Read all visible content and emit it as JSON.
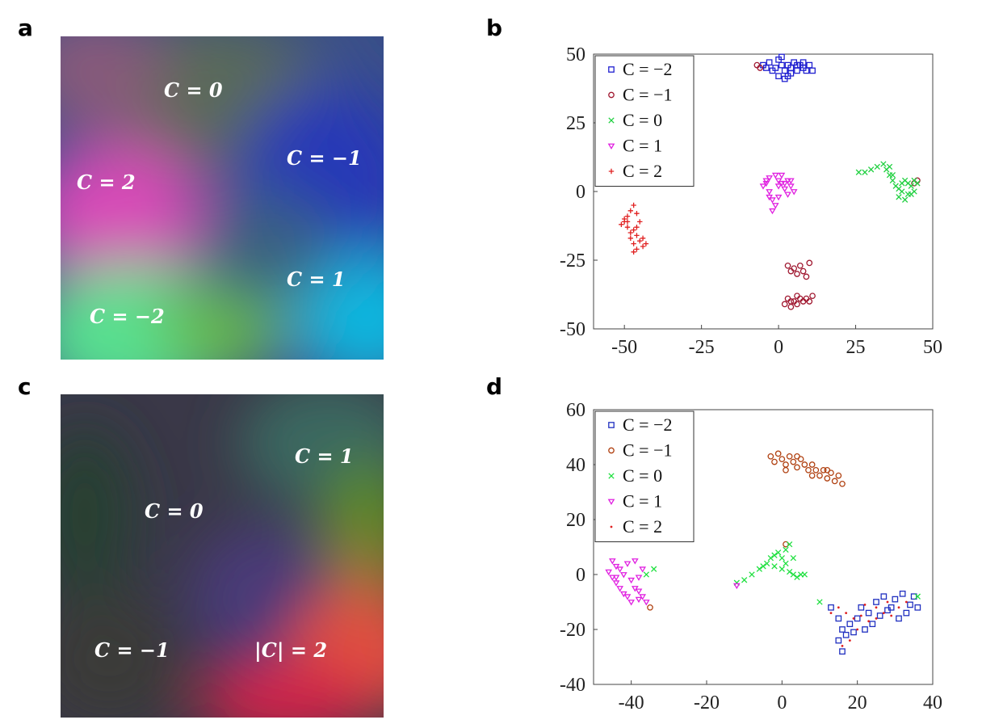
{
  "panels": {
    "a": {
      "letter": "a",
      "labels": [
        "C = 0",
        "C = −1",
        "C = 2",
        "C = 1",
        "C = −2"
      ]
    },
    "b": {
      "letter": "b"
    },
    "c": {
      "letter": "c",
      "labels": [
        "C = 1",
        "C = 0",
        "C = −1",
        "|C| = 2"
      ]
    },
    "d": {
      "letter": "d"
    }
  },
  "chart_data": [
    {
      "panel": "b",
      "type": "scatter",
      "xlim": [
        -60,
        50
      ],
      "ylim": [
        -50,
        50
      ],
      "xticks": [
        -50,
        -25,
        0,
        25,
        50
      ],
      "yticks": [
        -50,
        -25,
        0,
        25,
        50
      ],
      "grid": false,
      "legend_position": "top-left",
      "series": [
        {
          "name": "C = −2",
          "marker": "square",
          "color": "#2020d0",
          "points": [
            [
              -5,
              46
            ],
            [
              -3,
              47
            ],
            [
              -1,
              45
            ],
            [
              0,
              48
            ],
            [
              1,
              46
            ],
            [
              2,
              44
            ],
            [
              3,
              42
            ],
            [
              4,
              45
            ],
            [
              5,
              47
            ],
            [
              6,
              44
            ],
            [
              7,
              46
            ],
            [
              8,
              45
            ],
            [
              9,
              44
            ],
            [
              10,
              46
            ],
            [
              11,
              44
            ],
            [
              0,
              42
            ],
            [
              2,
              41
            ],
            [
              -2,
              44
            ],
            [
              4,
              43
            ],
            [
              6,
              46
            ],
            [
              8,
              47
            ],
            [
              1,
              49
            ],
            [
              3,
              46
            ],
            [
              -4,
              45
            ]
          ]
        },
        {
          "name": "C = −1",
          "marker": "circle",
          "color": "#a01830",
          "points": [
            [
              3,
              -27
            ],
            [
              4,
              -29
            ],
            [
              5,
              -28
            ],
            [
              6,
              -30
            ],
            [
              7,
              -27
            ],
            [
              8,
              -29
            ],
            [
              9,
              -31
            ],
            [
              10,
              -26
            ],
            [
              2,
              -41
            ],
            [
              3,
              -39
            ],
            [
              4,
              -42
            ],
            [
              5,
              -40
            ],
            [
              6,
              -41
            ],
            [
              7,
              -39
            ],
            [
              8,
              -40
            ],
            [
              9,
              -39
            ],
            [
              10,
              -40
            ],
            [
              11,
              -38
            ],
            [
              4,
              -40
            ],
            [
              6,
              -38
            ],
            [
              -7,
              46
            ],
            [
              -6,
              45
            ],
            [
              45,
              4
            ],
            [
              44,
              3
            ]
          ]
        },
        {
          "name": "C = 0",
          "marker": "x",
          "color": "#20d040",
          "points": [
            [
              26,
              7
            ],
            [
              28,
              7
            ],
            [
              30,
              8
            ],
            [
              32,
              9
            ],
            [
              34,
              10
            ],
            [
              35,
              8
            ],
            [
              36,
              6
            ],
            [
              37,
              4
            ],
            [
              38,
              2
            ],
            [
              39,
              1
            ],
            [
              40,
              3
            ],
            [
              41,
              4
            ],
            [
              42,
              3
            ],
            [
              43,
              2
            ],
            [
              44,
              4
            ],
            [
              40,
              0
            ],
            [
              39,
              -2
            ],
            [
              42,
              -1
            ],
            [
              44,
              0
            ],
            [
              37,
              6
            ],
            [
              36,
              9
            ],
            [
              41,
              -3
            ],
            [
              43,
              -1
            ],
            [
              45,
              3
            ]
          ]
        },
        {
          "name": "C = 1",
          "marker": "triangle",
          "color": "#e020e0",
          "points": [
            [
              -4,
              3
            ],
            [
              -3,
              0
            ],
            [
              -2,
              -3
            ],
            [
              -1,
              -5
            ],
            [
              -2,
              -7
            ],
            [
              0,
              2
            ],
            [
              -3,
              5
            ],
            [
              -1,
              6
            ],
            [
              1,
              6
            ],
            [
              1,
              3
            ],
            [
              2,
              1
            ],
            [
              3,
              4
            ],
            [
              4,
              2
            ],
            [
              5,
              0
            ],
            [
              3,
              -1
            ],
            [
              2,
              3
            ],
            [
              -5,
              2
            ],
            [
              -3,
              -2
            ],
            [
              0,
              -2
            ],
            [
              -4,
              4
            ],
            [
              0,
              4
            ],
            [
              4,
              4
            ]
          ]
        },
        {
          "name": "C = 2",
          "marker": "plus",
          "color": "#e02020",
          "points": [
            [
              -47,
              -5
            ],
            [
              -48,
              -7
            ],
            [
              -49,
              -9
            ],
            [
              -50,
              -11
            ],
            [
              -51,
              -12
            ],
            [
              -49,
              -13
            ],
            [
              -47,
              -14
            ],
            [
              -46,
              -16
            ],
            [
              -45,
              -18
            ],
            [
              -44,
              -20
            ],
            [
              -43,
              -19
            ],
            [
              -46,
              -21
            ],
            [
              -47,
              -19
            ],
            [
              -48,
              -15
            ],
            [
              -49,
              -11
            ],
            [
              -46,
              -8
            ],
            [
              -45,
              -11
            ],
            [
              -44,
              -17
            ],
            [
              -47,
              -22
            ],
            [
              -48,
              -17
            ],
            [
              -50,
              -10
            ],
            [
              -46,
              -13
            ]
          ]
        }
      ]
    },
    {
      "panel": "d",
      "type": "scatter",
      "xlim": [
        -50,
        40
      ],
      "ylim": [
        -40,
        60
      ],
      "xticks": [
        -40,
        -20,
        0,
        20,
        40
      ],
      "yticks": [
        -40,
        -20,
        0,
        20,
        40,
        60
      ],
      "grid": false,
      "legend_position": "top-left",
      "series": [
        {
          "name": "C = −2",
          "marker": "square",
          "color": "#2030c0",
          "points": [
            [
              13,
              -12
            ],
            [
              15,
              -16
            ],
            [
              16,
              -20
            ],
            [
              15,
              -24
            ],
            [
              16,
              -28
            ],
            [
              17,
              -22
            ],
            [
              18,
              -18
            ],
            [
              20,
              -16
            ],
            [
              22,
              -20
            ],
            [
              24,
              -18
            ],
            [
              26,
              -15
            ],
            [
              25,
              -10
            ],
            [
              27,
              -8
            ],
            [
              29,
              -12
            ],
            [
              31,
              -16
            ],
            [
              33,
              -14
            ],
            [
              34,
              -11
            ],
            [
              35,
              -8
            ],
            [
              32,
              -7
            ],
            [
              30,
              -9
            ],
            [
              28,
              -13
            ],
            [
              23,
              -14
            ],
            [
              19,
              -21
            ],
            [
              21,
              -12
            ],
            [
              36,
              -12
            ]
          ]
        },
        {
          "name": "C = −1",
          "marker": "circle",
          "color": "#b04010",
          "points": [
            [
              -3,
              43
            ],
            [
              -1,
              44
            ],
            [
              0,
              42
            ],
            [
              1,
              40
            ],
            [
              2,
              43
            ],
            [
              3,
              41
            ],
            [
              4,
              39
            ],
            [
              5,
              42
            ],
            [
              6,
              40
            ],
            [
              7,
              38
            ],
            [
              8,
              36
            ],
            [
              9,
              38
            ],
            [
              10,
              36
            ],
            [
              11,
              38
            ],
            [
              12,
              35
            ],
            [
              13,
              37
            ],
            [
              14,
              34
            ],
            [
              15,
              36
            ],
            [
              16,
              33
            ],
            [
              -2,
              41
            ],
            [
              1,
              38
            ],
            [
              4,
              43
            ],
            [
              8,
              40
            ],
            [
              12,
              38
            ],
            [
              -35,
              -12
            ],
            [
              1,
              11
            ]
          ]
        },
        {
          "name": "C = 0",
          "marker": "x",
          "color": "#20e040",
          "points": [
            [
              -12,
              -3
            ],
            [
              -10,
              -2
            ],
            [
              -8,
              0
            ],
            [
              -6,
              2
            ],
            [
              -4,
              4
            ],
            [
              -3,
              6
            ],
            [
              -2,
              7
            ],
            [
              -1,
              8
            ],
            [
              0,
              6
            ],
            [
              1,
              4
            ],
            [
              0,
              2
            ],
            [
              2,
              1
            ],
            [
              3,
              0
            ],
            [
              4,
              -1
            ],
            [
              5,
              0
            ],
            [
              6,
              0
            ],
            [
              1,
              9
            ],
            [
              2,
              11
            ],
            [
              -2,
              3
            ],
            [
              -5,
              3
            ],
            [
              3,
              6
            ],
            [
              -34,
              2
            ],
            [
              -36,
              0
            ],
            [
              10,
              -10
            ],
            [
              36,
              -8
            ]
          ]
        },
        {
          "name": "C = 1",
          "marker": "triangle",
          "color": "#e020e0",
          "points": [
            [
              -45,
              5
            ],
            [
              -44,
              3
            ],
            [
              -46,
              1
            ],
            [
              -45,
              -1
            ],
            [
              -44,
              -3
            ],
            [
              -43,
              -5
            ],
            [
              -42,
              -7
            ],
            [
              -41,
              -8
            ],
            [
              -40,
              -10
            ],
            [
              -38,
              -9
            ],
            [
              -39,
              -5
            ],
            [
              -37,
              -8
            ],
            [
              -36,
              -10
            ],
            [
              -38,
              -6
            ],
            [
              -40,
              -2
            ],
            [
              -42,
              0
            ],
            [
              -43,
              2
            ],
            [
              -41,
              4
            ],
            [
              -39,
              5
            ],
            [
              -37,
              2
            ],
            [
              -38,
              -1
            ],
            [
              -12,
              -4
            ],
            [
              -44,
              -1
            ]
          ]
        },
        {
          "name": "C = 2",
          "marker": "dot",
          "color": "#e02020",
          "points": [
            [
              13,
              -14
            ],
            [
              15,
              -12
            ],
            [
              17,
              -14
            ],
            [
              19,
              -16
            ],
            [
              21,
              -15
            ],
            [
              23,
              -17
            ],
            [
              25,
              -16
            ],
            [
              27,
              -14
            ],
            [
              29,
              -15
            ],
            [
              31,
              -12
            ],
            [
              33,
              -10
            ],
            [
              28,
              -10
            ],
            [
              25,
              -12
            ],
            [
              22,
              -11
            ],
            [
              18,
              -24
            ],
            [
              16,
              -26
            ],
            [
              20,
              -20
            ]
          ]
        }
      ]
    }
  ]
}
